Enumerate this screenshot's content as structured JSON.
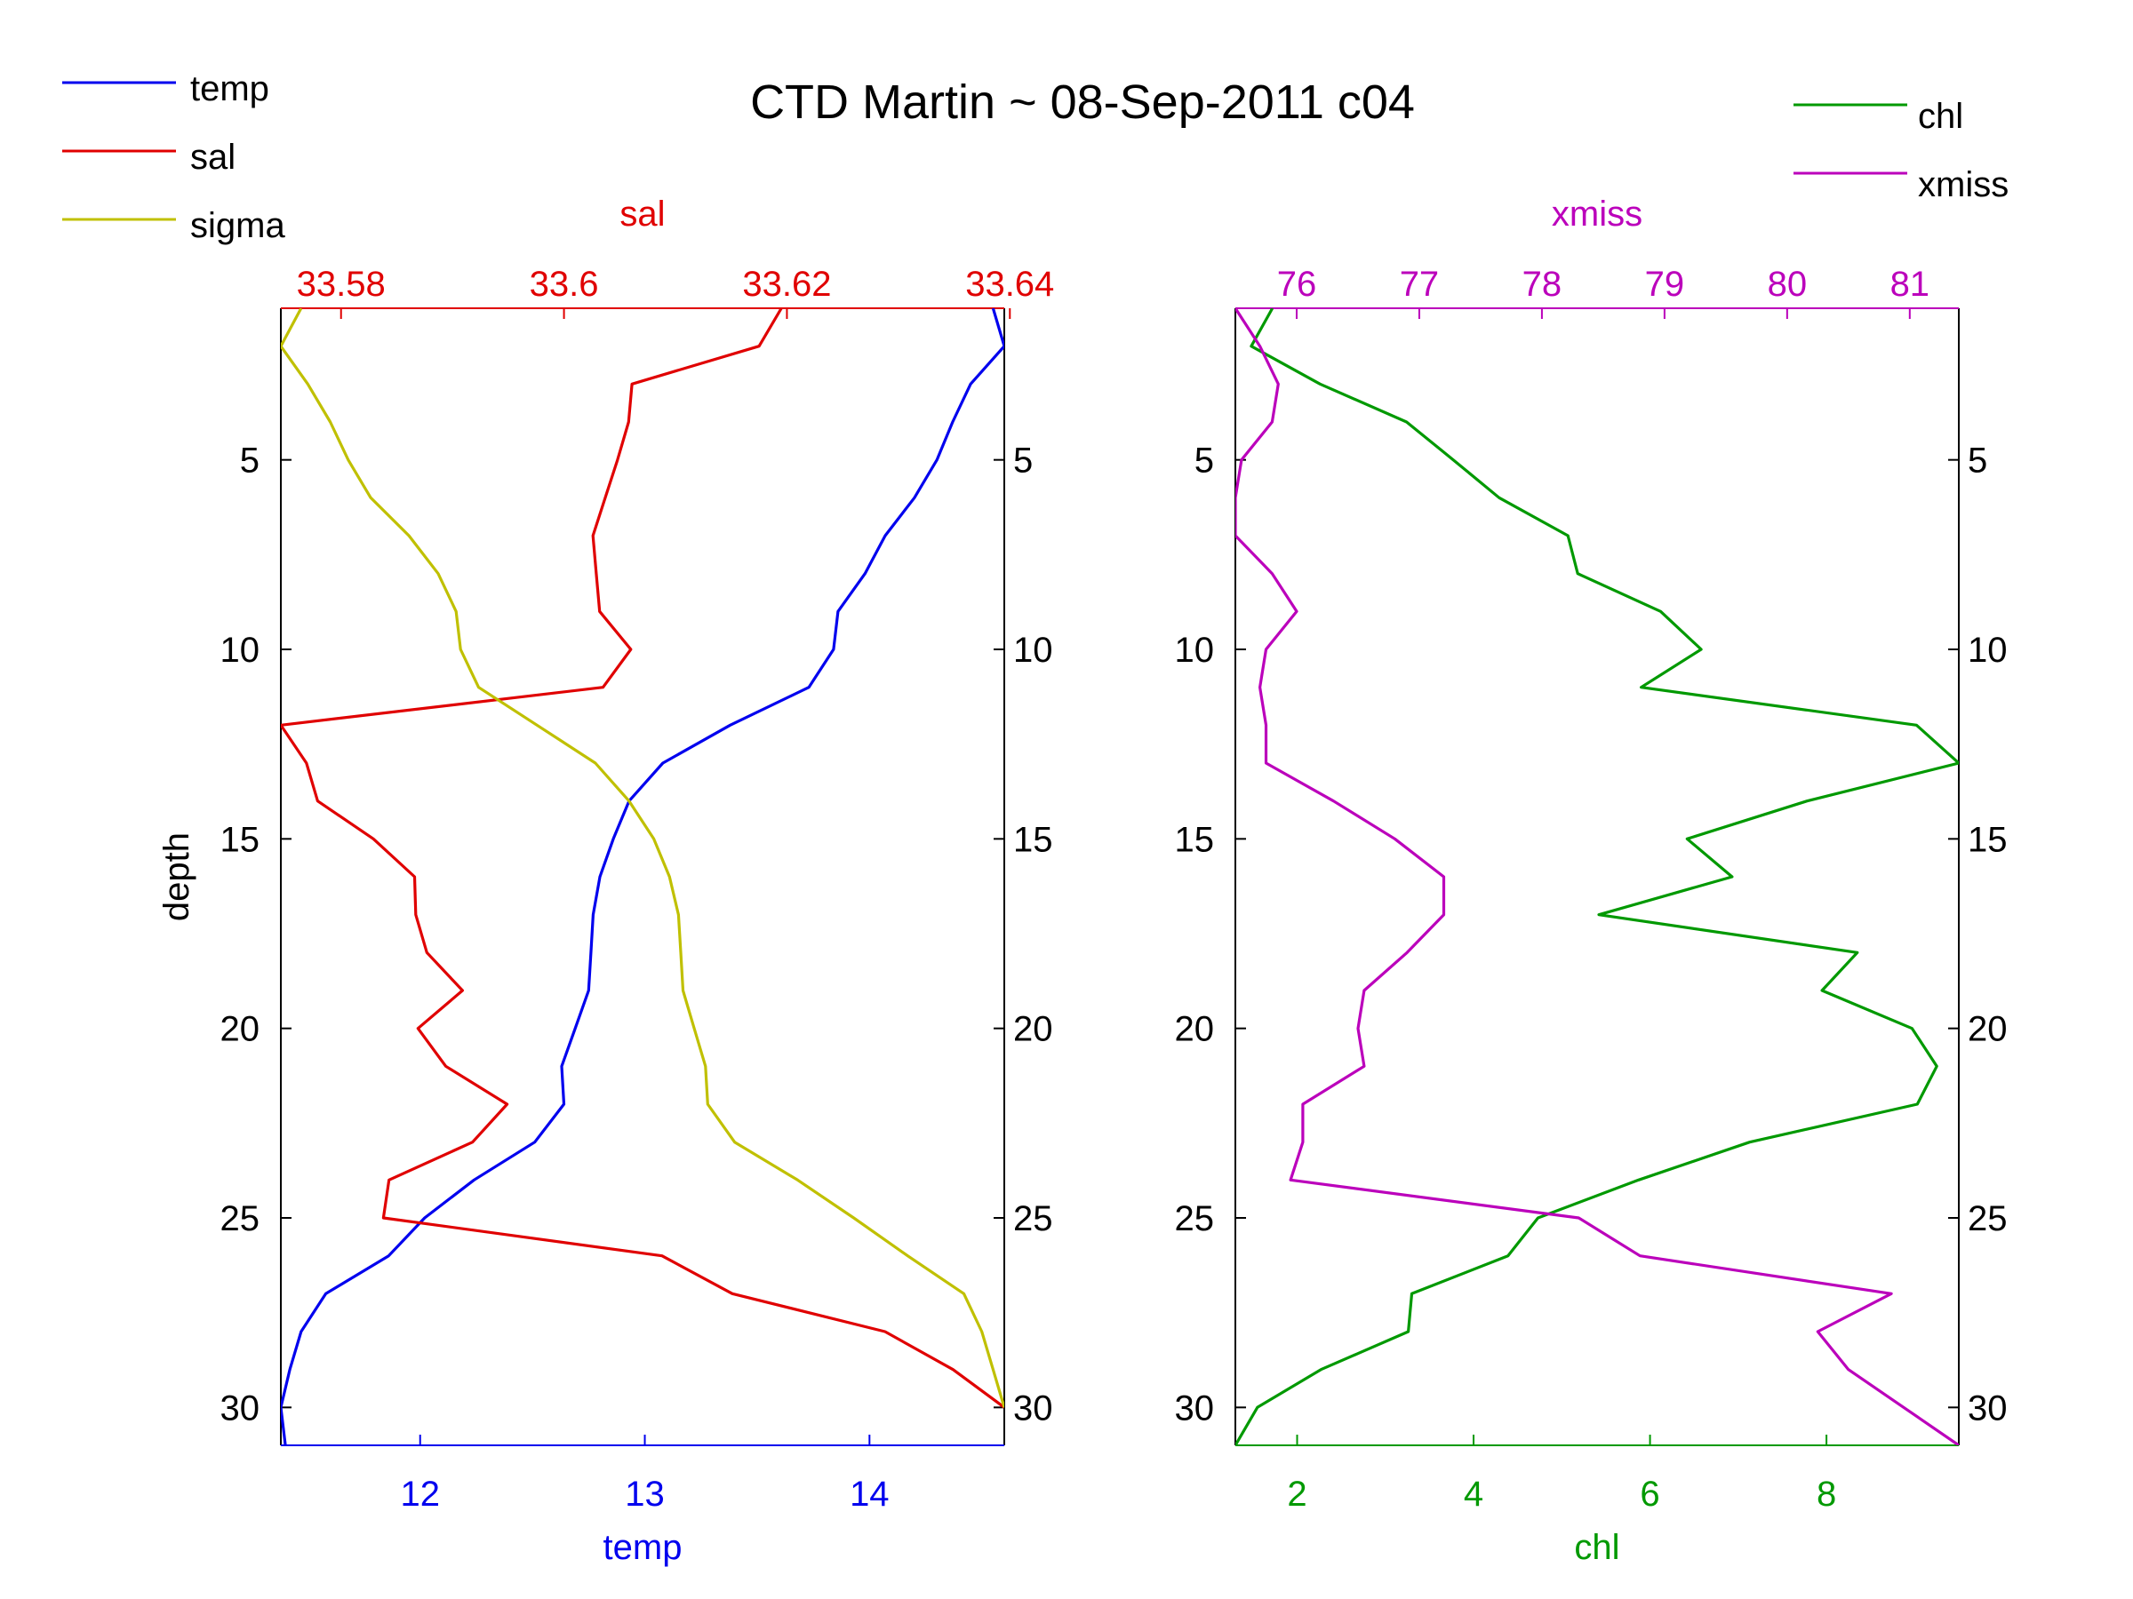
{
  "title": "CTD Martin ~ 08-Sep-2011 c04",
  "colors": {
    "temp": "#0000ee",
    "sal": "#e00000",
    "sigma": "#c0c000",
    "chl": "#009900",
    "xmiss": "#bb00bb",
    "axis": "#000000"
  },
  "chart_data": [
    {
      "type": "line",
      "panel": "left",
      "ylabel": "depth",
      "ylim": [
        1,
        31
      ],
      "yreversed": true,
      "yticks": [
        5,
        10,
        15,
        20,
        25,
        30
      ],
      "bottom_axis": {
        "label": "temp",
        "lim": [
          11.38,
          14.6
        ],
        "ticks": [
          12,
          13,
          14
        ]
      },
      "top_axis": {
        "label": "sal",
        "lim": [
          33.5746,
          33.6395
        ],
        "ticks": [
          33.58,
          33.6,
          33.62,
          33.64
        ]
      },
      "legend": {
        "placement": "top-left",
        "entries": [
          "temp",
          "sal",
          "sigma"
        ]
      },
      "series": [
        {
          "name": "temp",
          "axis": "bottom",
          "points": [
            [
              14.55,
              1
            ],
            [
              14.6,
              2
            ],
            [
              14.45,
              3
            ],
            [
              14.37,
              4
            ],
            [
              14.3,
              5
            ],
            [
              14.2,
              6
            ],
            [
              14.07,
              7
            ],
            [
              13.98,
              8
            ],
            [
              13.86,
              9
            ],
            [
              13.84,
              10
            ],
            [
              13.73,
              11
            ],
            [
              13.38,
              12
            ],
            [
              13.08,
              13
            ],
            [
              12.93,
              14
            ],
            [
              12.86,
              15
            ],
            [
              12.8,
              16
            ],
            [
              12.77,
              17
            ],
            [
              12.76,
              18
            ],
            [
              12.75,
              19
            ],
            [
              12.69,
              20
            ],
            [
              12.63,
              21
            ],
            [
              12.64,
              22
            ],
            [
              12.51,
              23
            ],
            [
              12.24,
              24
            ],
            [
              12.02,
              25
            ],
            [
              11.86,
              26
            ],
            [
              11.58,
              27
            ],
            [
              11.47,
              28
            ],
            [
              11.42,
              29
            ],
            [
              11.38,
              30
            ],
            [
              11.4,
              31
            ]
          ]
        },
        {
          "name": "sal",
          "axis": "top",
          "points": [
            [
              33.6195,
              1
            ],
            [
              33.6175,
              2
            ],
            [
              33.6061,
              3
            ],
            [
              33.6058,
              4
            ],
            [
              33.6048,
              5
            ],
            [
              33.6037,
              6
            ],
            [
              33.6026,
              7
            ],
            [
              33.6029,
              8
            ],
            [
              33.6032,
              9
            ],
            [
              33.606,
              10
            ],
            [
              33.6035,
              11
            ],
            [
              33.5746,
              12
            ],
            [
              33.5769,
              13
            ],
            [
              33.5779,
              14
            ],
            [
              33.5829,
              15
            ],
            [
              33.5866,
              16
            ],
            [
              33.5867,
              17
            ],
            [
              33.5877,
              18
            ],
            [
              33.5909,
              19
            ],
            [
              33.5869,
              20
            ],
            [
              33.5894,
              21
            ],
            [
              33.5949,
              22
            ],
            [
              33.5918,
              23
            ],
            [
              33.5843,
              24
            ],
            [
              33.5838,
              25
            ],
            [
              33.6088,
              26
            ],
            [
              33.6151,
              27
            ],
            [
              33.6288,
              28
            ],
            [
              33.6349,
              29
            ],
            [
              33.6395,
              30
            ]
          ]
        },
        {
          "name": "sigma",
          "axis": "bottom",
          "points": [
            [
              11.47,
              1
            ],
            [
              11.38,
              2
            ],
            [
              11.5,
              3
            ],
            [
              11.6,
              4
            ],
            [
              11.68,
              5
            ],
            [
              11.78,
              6
            ],
            [
              11.95,
              7
            ],
            [
              12.08,
              8
            ],
            [
              12.16,
              9
            ],
            [
              12.18,
              10
            ],
            [
              12.26,
              11
            ],
            [
              12.52,
              12
            ],
            [
              12.78,
              13
            ],
            [
              12.93,
              14
            ],
            [
              13.04,
              15
            ],
            [
              13.11,
              16
            ],
            [
              13.15,
              17
            ],
            [
              13.16,
              18
            ],
            [
              13.17,
              19
            ],
            [
              13.22,
              20
            ],
            [
              13.27,
              21
            ],
            [
              13.28,
              22
            ],
            [
              13.4,
              23
            ],
            [
              13.68,
              24
            ],
            [
              13.93,
              25
            ],
            [
              14.17,
              26
            ],
            [
              14.42,
              27
            ],
            [
              14.5,
              28
            ],
            [
              14.55,
              29
            ],
            [
              14.6,
              30
            ]
          ]
        }
      ]
    },
    {
      "type": "line",
      "panel": "right",
      "ylim": [
        1,
        31
      ],
      "yreversed": true,
      "yticks": [
        5,
        10,
        15,
        20,
        25,
        30
      ],
      "bottom_axis": {
        "label": "chl",
        "lim": [
          1.3,
          9.5
        ],
        "ticks": [
          2,
          4,
          6,
          8
        ]
      },
      "top_axis": {
        "label": "xmiss",
        "lim": [
          75.5,
          81.4
        ],
        "ticks": [
          76,
          77,
          78,
          79,
          80,
          81
        ]
      },
      "legend": {
        "placement": "top-right",
        "entries": [
          "chl",
          "xmiss"
        ]
      },
      "series": [
        {
          "name": "chl",
          "axis": "bottom",
          "points": [
            [
              1.72,
              1
            ],
            [
              1.48,
              2
            ],
            [
              2.26,
              3
            ],
            [
              3.24,
              4
            ],
            [
              3.77,
              5
            ],
            [
              4.29,
              6
            ],
            [
              5.07,
              7
            ],
            [
              5.18,
              8
            ],
            [
              6.12,
              9
            ],
            [
              6.58,
              10
            ],
            [
              5.9,
              11
            ],
            [
              9.02,
              12
            ],
            [
              9.5,
              13
            ],
            [
              7.78,
              14
            ],
            [
              6.42,
              15
            ],
            [
              6.93,
              16
            ],
            [
              5.42,
              17
            ],
            [
              8.35,
              18
            ],
            [
              7.95,
              19
            ],
            [
              8.97,
              20
            ],
            [
              9.25,
              21
            ],
            [
              9.03,
              22
            ],
            [
              7.13,
              23
            ],
            [
              5.87,
              24
            ],
            [
              4.73,
              25
            ],
            [
              4.39,
              26
            ],
            [
              3.3,
              27
            ],
            [
              3.26,
              28
            ],
            [
              2.27,
              29
            ],
            [
              1.55,
              30
            ],
            [
              1.3,
              31
            ]
          ]
        },
        {
          "name": "xmiss",
          "axis": "top",
          "points": [
            [
              75.5,
              1
            ],
            [
              75.7,
              2
            ],
            [
              75.85,
              3
            ],
            [
              75.8,
              4
            ],
            [
              75.55,
              5
            ],
            [
              75.5,
              6
            ],
            [
              75.5,
              7
            ],
            [
              75.8,
              8
            ],
            [
              76.0,
              9
            ],
            [
              75.75,
              10
            ],
            [
              75.7,
              11
            ],
            [
              75.75,
              12
            ],
            [
              75.75,
              13
            ],
            [
              76.3,
              14
            ],
            [
              76.8,
              15
            ],
            [
              77.2,
              16
            ],
            [
              77.2,
              17
            ],
            [
              76.9,
              18
            ],
            [
              76.55,
              19
            ],
            [
              76.5,
              20
            ],
            [
              76.55,
              21
            ],
            [
              76.05,
              22
            ],
            [
              76.05,
              23
            ],
            [
              75.95,
              24
            ],
            [
              78.3,
              25
            ],
            [
              78.8,
              26
            ],
            [
              80.85,
              27
            ],
            [
              80.25,
              28
            ],
            [
              80.5,
              29
            ],
            [
              80.95,
              30
            ],
            [
              81.4,
              31
            ]
          ]
        }
      ]
    }
  ]
}
